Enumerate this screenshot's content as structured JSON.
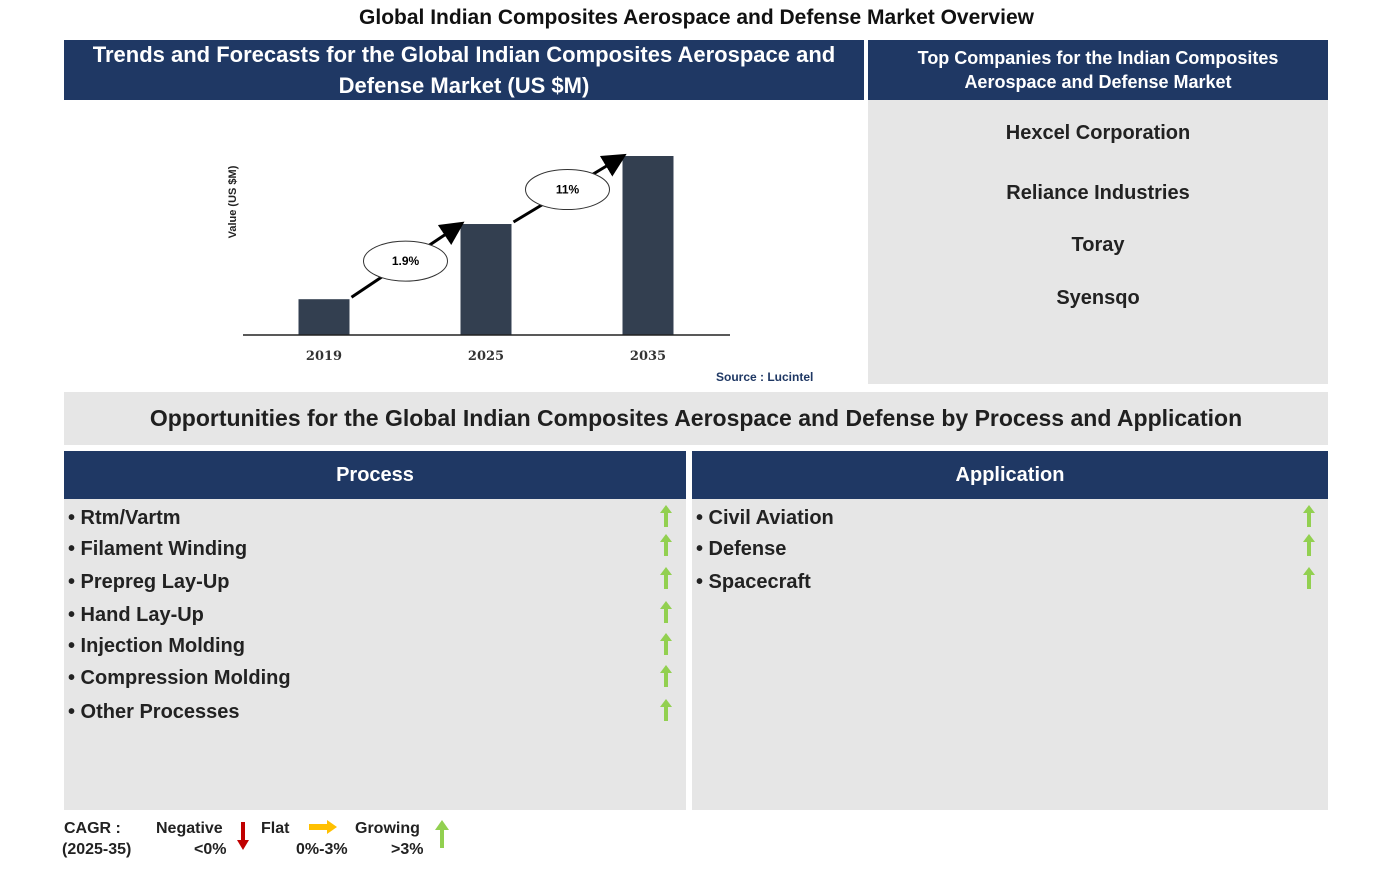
{
  "title": "Global Indian Composites Aerospace and Defense Market Overview",
  "chart_section": {
    "header": "Trends and Forecasts for the Global Indian Composites Aerospace and Defense Market (US $M)",
    "source": "Source : Lucintel"
  },
  "chart_data": {
    "type": "bar",
    "categories": [
      "2019",
      "2025",
      "2035"
    ],
    "values": [
      20,
      62,
      100
    ],
    "value_note": "relative bar heights (axis unlabeled; index 2035 = 100)",
    "ylabel": "Value (US $M)",
    "xlabel": "",
    "ylim": [
      0,
      100
    ],
    "grid": false,
    "bar_color": "#333f50",
    "annotations": [
      {
        "label": "1.9%",
        "from": "2019",
        "to": "2025"
      },
      {
        "label": "11%",
        "from": "2025",
        "to": "2035"
      }
    ]
  },
  "companies": {
    "header": "Top Companies for the Indian Composites Aerospace and Defense Market",
    "items": [
      "Hexcel Corporation",
      "Reliance Industries",
      "Toray",
      "Syensqo"
    ]
  },
  "opportunities": {
    "banner": "Opportunities for the Global Indian Composites Aerospace and Defense by Process and Application",
    "process": {
      "header": "Process",
      "items": [
        {
          "label": "• Rtm/Vartm",
          "trend": "growing"
        },
        {
          "label": "• Filament Winding",
          "trend": "growing"
        },
        {
          "label": "• Prepreg Lay-Up",
          "trend": "growing"
        },
        {
          "label": "• Hand Lay-Up",
          "trend": "growing"
        },
        {
          "label": "• Injection Molding",
          "trend": "growing"
        },
        {
          "label": "• Compression Molding",
          "trend": "growing"
        },
        {
          "label": "• Other Processes",
          "trend": "growing"
        }
      ]
    },
    "application": {
      "header": "Application",
      "items": [
        {
          "label": "• Civil Aviation",
          "trend": "growing"
        },
        {
          "label": "• Defense",
          "trend": "growing"
        },
        {
          "label": "• Spacecraft",
          "trend": "growing"
        }
      ]
    }
  },
  "legend": {
    "cagr_label": "CAGR  :",
    "cagr_period": "(2025-35)",
    "negative": {
      "label": "Negative",
      "range": "<0%",
      "color": "#c00000",
      "icon": "down-arrow-icon"
    },
    "flat": {
      "label": "Flat",
      "range": "0%-3%",
      "color": "#ffc000",
      "icon": "right-arrow-icon"
    },
    "growing": {
      "label": "Growing",
      "range": ">3%",
      "color": "#92d050",
      "icon": "up-arrow-icon"
    }
  }
}
